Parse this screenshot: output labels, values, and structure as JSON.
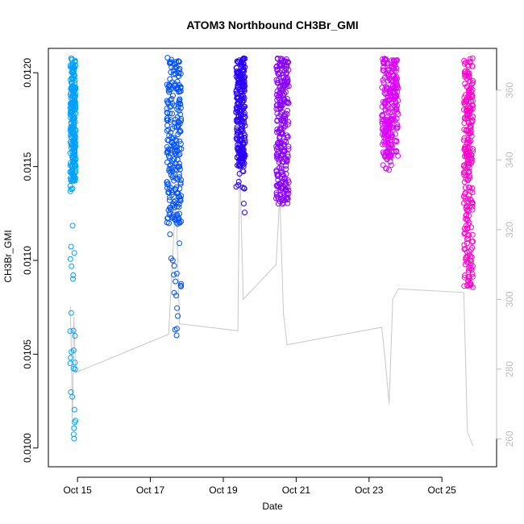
{
  "chart_data": {
    "type": "scatter",
    "title": "ATOM3 Northbound CH3Br_GMI",
    "xlabel": "Date",
    "ylabel": "CH3Br_GMI",
    "x_unit": "day of October 2017",
    "xlim": [
      14.2,
      26.5
    ],
    "ylim": [
      0.0099,
      0.01213
    ],
    "y2lim": [
      252,
      372
    ],
    "x_ticks": [
      15,
      17,
      19,
      21,
      23,
      25
    ],
    "x_tick_labels": [
      "Oct 15",
      "Oct 17",
      "Oct 19",
      "Oct 21",
      "Oct 23",
      "Oct 25"
    ],
    "y_ticks": [
      0.01,
      0.0105,
      0.011,
      0.0115,
      0.012
    ],
    "y_tick_labels": [
      "0.0100",
      "0.0105",
      "0.0110",
      "0.0115",
      "0.0120"
    ],
    "y2_ticks": [
      260,
      280,
      300,
      320,
      340,
      360
    ],
    "y2_tick_labels": [
      "260",
      "280",
      "300",
      "320",
      "340",
      "360"
    ],
    "grid": false,
    "series": [
      {
        "color": "#00a0ff",
        "segments": [
          {
            "x_start": 14.8,
            "x_end": 14.95,
            "y_min": 0.01003,
            "y_max": 0.01208,
            "y_dense_min": 0.01142,
            "y_dense_max": 0.01208
          }
        ]
      },
      {
        "color": "#0050ff",
        "segments": [
          {
            "x_start": 17.45,
            "x_end": 17.85,
            "y_min": 0.0106,
            "y_max": 0.01208,
            "y_dense_min": 0.0112,
            "y_dense_max": 0.01208
          }
        ]
      },
      {
        "color": "#2a00ff",
        "segments": [
          {
            "x_start": 19.35,
            "x_end": 19.6,
            "y_min": 0.01123,
            "y_max": 0.01208,
            "y_dense_min": 0.0115,
            "y_dense_max": 0.01208
          }
        ]
      },
      {
        "color": "#8800ff",
        "segments": [
          {
            "x_start": 20.45,
            "x_end": 20.8,
            "y_min": 0.0113,
            "y_max": 0.01208,
            "y_dense_min": 0.0113,
            "y_dense_max": 0.01208
          }
        ]
      },
      {
        "color": "#dd00ff",
        "segments": [
          {
            "x_start": 23.35,
            "x_end": 23.8,
            "y_min": 0.01148,
            "y_max": 0.01208,
            "y_dense_min": 0.01155,
            "y_dense_max": 0.01208
          }
        ]
      },
      {
        "color": "#ff00cc",
        "segments": [
          {
            "x_start": 25.6,
            "x_end": 25.85,
            "y_min": 0.01085,
            "y_max": 0.01208,
            "y_dense_min": 0.01085,
            "y_dense_max": 0.01208
          }
        ]
      }
    ],
    "altitude_trace": {
      "color": "#c8c8c8",
      "axis": "right",
      "points": [
        [
          14.8,
          298
        ],
        [
          14.83,
          285
        ],
        [
          14.86,
          265
        ],
        [
          14.9,
          295
        ],
        [
          14.95,
          279
        ],
        [
          17.5,
          290
        ],
        [
          17.55,
          300
        ],
        [
          17.7,
          330
        ],
        [
          17.8,
          293
        ],
        [
          19.4,
          291
        ],
        [
          19.45,
          340
        ],
        [
          19.55,
          300
        ],
        [
          20.45,
          310
        ],
        [
          20.55,
          330
        ],
        [
          20.65,
          296
        ],
        [
          20.75,
          287
        ],
        [
          23.35,
          292
        ],
        [
          23.45,
          282
        ],
        [
          23.55,
          270
        ],
        [
          23.65,
          300
        ],
        [
          23.8,
          303
        ],
        [
          25.6,
          302
        ],
        [
          25.7,
          262
        ],
        [
          25.85,
          258
        ]
      ]
    }
  }
}
